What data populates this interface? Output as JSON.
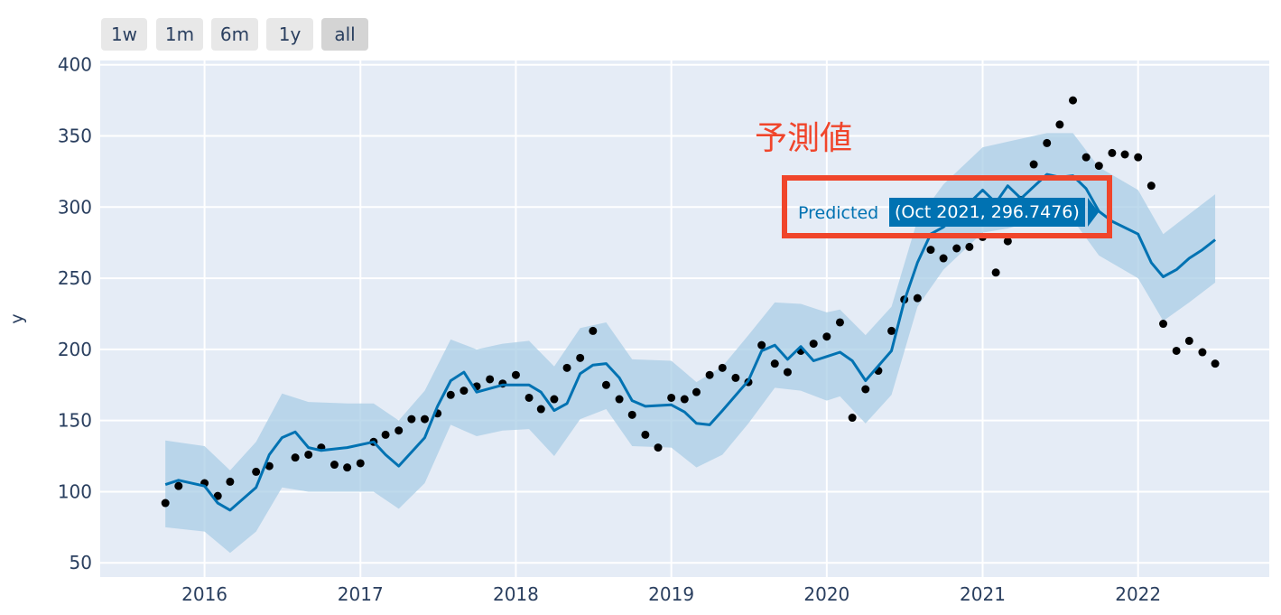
{
  "range_selector": {
    "buttons": [
      {
        "label": "1w",
        "active": false
      },
      {
        "label": "1m",
        "active": false
      },
      {
        "label": "6m",
        "active": false
      },
      {
        "label": "1y",
        "active": false
      },
      {
        "label": "all",
        "active": true
      }
    ]
  },
  "annotation": {
    "text": "予測値",
    "color": "#f0452b"
  },
  "hover": {
    "series": "Predicted",
    "value_text": "(Oct 2021, 296.7476)"
  },
  "colors": {
    "plot_bg": "#e5ecf6",
    "grid": "#ffffff",
    "band": "#a9cde6",
    "forecast_line": "#0072b2",
    "actual_points": "#000000",
    "axis_text": "#2a3f5f"
  },
  "chart_data": {
    "type": "line",
    "title": "",
    "xlabel": "",
    "ylabel": "y",
    "xlim": [
      "2015-05-01",
      "2022-11-05"
    ],
    "ylim": [
      40,
      403
    ],
    "x_ticks": [
      "2016",
      "2017",
      "2018",
      "2019",
      "2020",
      "2021",
      "2022"
    ],
    "y_ticks": [
      50,
      100,
      150,
      200,
      250,
      300,
      350,
      400
    ],
    "grid": true,
    "series": [
      {
        "name": "Predicted",
        "kind": "line",
        "points": [
          [
            "2015-10-01",
            105
          ],
          [
            "2015-11-01",
            108
          ],
          [
            "2016-01-01",
            104
          ],
          [
            "2016-02-01",
            92
          ],
          [
            "2016-03-01",
            87
          ],
          [
            "2016-05-01",
            103
          ],
          [
            "2016-06-01",
            126
          ],
          [
            "2016-07-01",
            138
          ],
          [
            "2016-08-01",
            142
          ],
          [
            "2016-09-01",
            131
          ],
          [
            "2016-10-01",
            129
          ],
          [
            "2016-12-01",
            131
          ],
          [
            "2017-02-01",
            135
          ],
          [
            "2017-03-01",
            126
          ],
          [
            "2017-04-01",
            118
          ],
          [
            "2017-06-01",
            138
          ],
          [
            "2017-07-01",
            160
          ],
          [
            "2017-08-01",
            178
          ],
          [
            "2017-09-01",
            184
          ],
          [
            "2017-10-01",
            170
          ],
          [
            "2017-12-01",
            175
          ],
          [
            "2018-02-01",
            175
          ],
          [
            "2018-03-01",
            170
          ],
          [
            "2018-04-01",
            157
          ],
          [
            "2018-05-01",
            162
          ],
          [
            "2018-06-01",
            183
          ],
          [
            "2018-07-01",
            189
          ],
          [
            "2018-08-01",
            190
          ],
          [
            "2018-09-01",
            180
          ],
          [
            "2018-10-01",
            164
          ],
          [
            "2018-11-01",
            160
          ],
          [
            "2019-01-01",
            161
          ],
          [
            "2019-02-01",
            156
          ],
          [
            "2019-03-01",
            148
          ],
          [
            "2019-04-01",
            147
          ],
          [
            "2019-05-01",
            157
          ],
          [
            "2019-07-01",
            178
          ],
          [
            "2019-08-01",
            199
          ],
          [
            "2019-09-01",
            203
          ],
          [
            "2019-10-01",
            193
          ],
          [
            "2019-11-01",
            202
          ],
          [
            "2019-12-01",
            192
          ],
          [
            "2020-01-01",
            195
          ],
          [
            "2020-02-01",
            198
          ],
          [
            "2020-03-01",
            192
          ],
          [
            "2020-04-01",
            178
          ],
          [
            "2020-06-01",
            199
          ],
          [
            "2020-07-01",
            234
          ],
          [
            "2020-08-01",
            261
          ],
          [
            "2020-09-01",
            281
          ],
          [
            "2020-10-01",
            286
          ],
          [
            "2020-12-01",
            303
          ],
          [
            "2021-01-01",
            312
          ],
          [
            "2021-02-01",
            303
          ],
          [
            "2021-03-01",
            315
          ],
          [
            "2021-04-01",
            306
          ],
          [
            "2021-06-01",
            323
          ],
          [
            "2021-07-01",
            321
          ],
          [
            "2021-08-01",
            322
          ],
          [
            "2021-09-01",
            313
          ],
          [
            "2021-10-01",
            297
          ],
          [
            "2021-11-01",
            290
          ],
          [
            "2022-01-01",
            281
          ],
          [
            "2022-02-01",
            261
          ],
          [
            "2022-03-01",
            251
          ],
          [
            "2022-04-01",
            256
          ],
          [
            "2022-05-01",
            264
          ],
          [
            "2022-06-01",
            270
          ],
          [
            "2022-07-01",
            277
          ]
        ]
      },
      {
        "name": "Predicted interval",
        "kind": "band",
        "points": [
          [
            "2015-10-01",
            75,
            136
          ],
          [
            "2016-01-01",
            72,
            132
          ],
          [
            "2016-03-01",
            57,
            115
          ],
          [
            "2016-05-01",
            72,
            135
          ],
          [
            "2016-07-01",
            103,
            169
          ],
          [
            "2016-09-01",
            100,
            163
          ],
          [
            "2016-12-01",
            100,
            162
          ],
          [
            "2017-02-01",
            100,
            162
          ],
          [
            "2017-04-01",
            88,
            150
          ],
          [
            "2017-06-01",
            106,
            171
          ],
          [
            "2017-08-01",
            147,
            207
          ],
          [
            "2017-10-01",
            139,
            200
          ],
          [
            "2017-12-01",
            143,
            204
          ],
          [
            "2018-02-01",
            144,
            206
          ],
          [
            "2018-04-01",
            125,
            188
          ],
          [
            "2018-06-01",
            151,
            215
          ],
          [
            "2018-08-01",
            158,
            219
          ],
          [
            "2018-10-01",
            132,
            193
          ],
          [
            "2019-01-01",
            131,
            192
          ],
          [
            "2019-03-01",
            117,
            177
          ],
          [
            "2019-05-01",
            126,
            188
          ],
          [
            "2019-07-01",
            148,
            210
          ],
          [
            "2019-09-01",
            173,
            233
          ],
          [
            "2019-11-01",
            171,
            232
          ],
          [
            "2020-01-01",
            164,
            226
          ],
          [
            "2020-02-01",
            167,
            228
          ],
          [
            "2020-04-01",
            148,
            210
          ],
          [
            "2020-06-01",
            168,
            230
          ],
          [
            "2020-08-01",
            230,
            291
          ],
          [
            "2020-10-01",
            256,
            316
          ],
          [
            "2021-01-01",
            282,
            342
          ],
          [
            "2021-03-01",
            285,
            346
          ],
          [
            "2021-06-01",
            293,
            352
          ],
          [
            "2021-08-01",
            291,
            352
          ],
          [
            "2021-10-01",
            266,
            328
          ],
          [
            "2022-01-01",
            250,
            312
          ],
          [
            "2022-03-01",
            220,
            281
          ],
          [
            "2022-05-01",
            233,
            295
          ],
          [
            "2022-07-01",
            247,
            309
          ]
        ]
      },
      {
        "name": "Actual",
        "kind": "scatter",
        "points": [
          [
            "2015-10-01",
            92
          ],
          [
            "2015-11-01",
            104
          ],
          [
            "2016-01-01",
            106
          ],
          [
            "2016-02-01",
            97
          ],
          [
            "2016-03-01",
            107
          ],
          [
            "2016-05-01",
            114
          ],
          [
            "2016-06-01",
            118
          ],
          [
            "2016-08-01",
            124
          ],
          [
            "2016-09-01",
            126
          ],
          [
            "2016-10-01",
            131
          ],
          [
            "2016-11-01",
            119
          ],
          [
            "2016-12-01",
            117
          ],
          [
            "2017-01-01",
            120
          ],
          [
            "2017-02-01",
            135
          ],
          [
            "2017-03-01",
            140
          ],
          [
            "2017-04-01",
            143
          ],
          [
            "2017-05-01",
            151
          ],
          [
            "2017-06-01",
            151
          ],
          [
            "2017-07-01",
            155
          ],
          [
            "2017-08-01",
            168
          ],
          [
            "2017-09-01",
            171
          ],
          [
            "2017-10-01",
            174
          ],
          [
            "2017-11-01",
            179
          ],
          [
            "2017-12-01",
            176
          ],
          [
            "2018-01-01",
            182
          ],
          [
            "2018-02-01",
            166
          ],
          [
            "2018-03-01",
            158
          ],
          [
            "2018-04-01",
            165
          ],
          [
            "2018-05-01",
            187
          ],
          [
            "2018-06-01",
            194
          ],
          [
            "2018-07-01",
            213
          ],
          [
            "2018-08-01",
            175
          ],
          [
            "2018-09-01",
            165
          ],
          [
            "2018-10-01",
            154
          ],
          [
            "2018-11-01",
            140
          ],
          [
            "2018-12-01",
            131
          ],
          [
            "2019-01-01",
            166
          ],
          [
            "2019-02-01",
            165
          ],
          [
            "2019-03-01",
            170
          ],
          [
            "2019-04-01",
            182
          ],
          [
            "2019-05-01",
            187
          ],
          [
            "2019-06-01",
            180
          ],
          [
            "2019-07-01",
            177
          ],
          [
            "2019-08-01",
            203
          ],
          [
            "2019-09-01",
            190
          ],
          [
            "2019-10-01",
            184
          ],
          [
            "2019-11-01",
            199
          ],
          [
            "2019-12-01",
            204
          ],
          [
            "2020-01-01",
            209
          ],
          [
            "2020-02-01",
            219
          ],
          [
            "2020-03-01",
            152
          ],
          [
            "2020-04-01",
            172
          ],
          [
            "2020-05-01",
            185
          ],
          [
            "2020-06-01",
            213
          ],
          [
            "2020-07-01",
            235
          ],
          [
            "2020-08-01",
            236
          ],
          [
            "2020-09-01",
            270
          ],
          [
            "2020-10-01",
            264
          ],
          [
            "2020-11-01",
            271
          ],
          [
            "2020-12-01",
            272
          ],
          [
            "2021-01-01",
            279
          ],
          [
            "2021-02-01",
            254
          ],
          [
            "2021-03-01",
            276
          ],
          [
            "2021-04-01",
            305
          ],
          [
            "2021-05-01",
            330
          ],
          [
            "2021-06-01",
            345
          ],
          [
            "2021-07-01",
            358
          ],
          [
            "2021-08-01",
            375
          ],
          [
            "2021-09-01",
            335
          ],
          [
            "2021-10-01",
            329
          ],
          [
            "2021-11-01",
            338
          ],
          [
            "2021-12-01",
            337
          ],
          [
            "2022-01-01",
            335
          ],
          [
            "2022-02-01",
            315
          ],
          [
            "2022-03-01",
            218
          ],
          [
            "2022-04-01",
            199
          ],
          [
            "2022-05-01",
            206
          ],
          [
            "2022-06-01",
            198
          ],
          [
            "2022-07-01",
            190
          ]
        ]
      }
    ]
  }
}
